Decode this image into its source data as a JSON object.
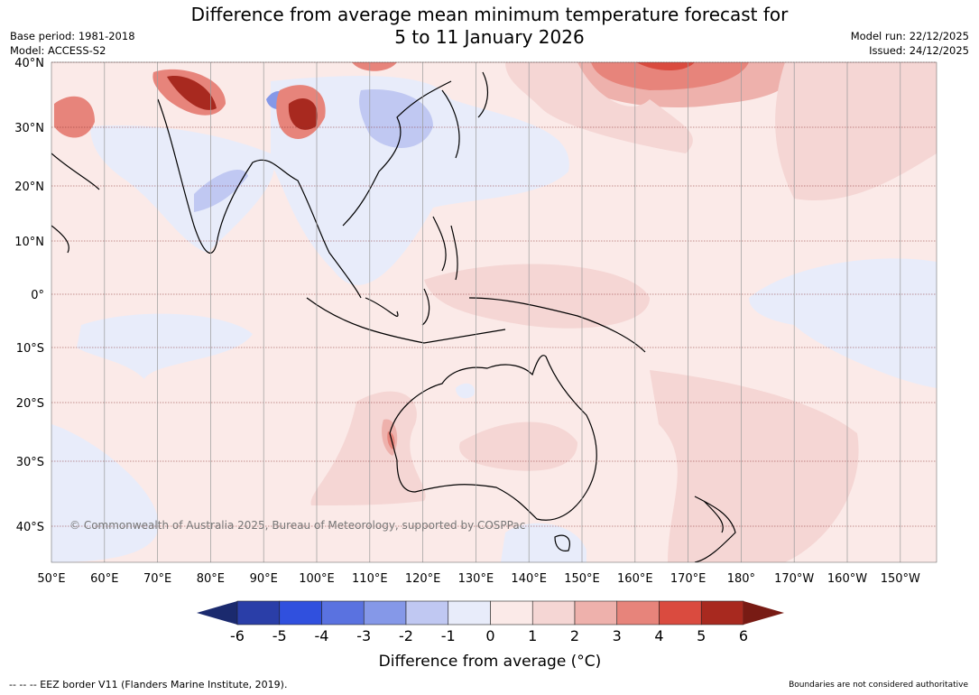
{
  "title_line1": "Difference from average mean minimum temperature forecast for",
  "title_line2": "5 to 11 January 2026",
  "base_period": "Base period: 1981-2018",
  "model": "Model: ACCESS-S2",
  "model_run": "Model run: 22/12/2025",
  "issued": "Issued: 24/12/2025",
  "map": {
    "lat_labels": [
      "40°N",
      "30°N",
      "20°N",
      "10°N",
      "0°",
      "10°S",
      "20°S",
      "30°S",
      "40°S"
    ],
    "lon_labels": [
      "50°E",
      "60°E",
      "70°E",
      "80°E",
      "90°E",
      "100°E",
      "110°E",
      "120°E",
      "130°E",
      "140°E",
      "150°E",
      "160°E",
      "170°E",
      "180°",
      "170°W",
      "160°W",
      "150°W"
    ],
    "copyright": "© Commonwealth of Australia 2025, Bureau of Meteorology, supported by COSPPac"
  },
  "colorbar": {
    "ticks": [
      "-6",
      "-5",
      "-4",
      "-3",
      "-2",
      "-1",
      "0",
      "1",
      "2",
      "3",
      "4",
      "5",
      "6"
    ],
    "colors": [
      "#2a3ea8",
      "#3050de",
      "#5a72e0",
      "#8598e8",
      "#c0c8f2",
      "#e8ecfa",
      "#fbeae8",
      "#f5d6d4",
      "#eeb1ac",
      "#e7847b",
      "#da4b3f",
      "#a8291f"
    ],
    "under_color": "#1b2a6e",
    "over_color": "#781b14",
    "label": "Difference from average (°C)"
  },
  "footer_left": "--  --  -- EEZ border V11 (Flanders Marine Institute, 2019).",
  "footer_right": "Boundaries are not considered authoritative"
}
